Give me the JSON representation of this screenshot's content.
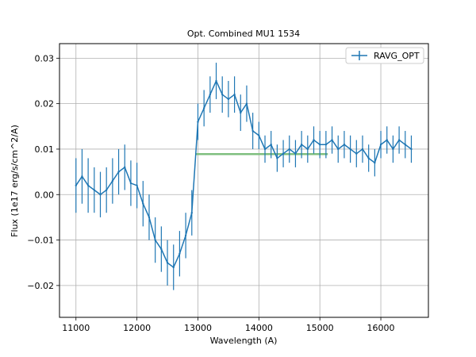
{
  "chart_data": {
    "type": "line",
    "title": "Opt. Combined MU1 1534",
    "xlabel": "Wavelength (A)",
    "ylabel": "Flux (1e17 erg/s/cm^2/A)",
    "xlim": [
      10730,
      16780
    ],
    "ylim": [
      -0.027,
      0.0332
    ],
    "grid": true,
    "legend": {
      "position": "top-right",
      "entries": [
        "RAVG_OPT"
      ]
    },
    "xticks": [
      11000,
      12000,
      13000,
      14000,
      15000,
      16000
    ],
    "xtick_labels": [
      "11000",
      "12000",
      "13000",
      "14000",
      "15000",
      "16000"
    ],
    "yticks": [
      -0.02,
      -0.01,
      0.0,
      0.01,
      0.02,
      0.03
    ],
    "ytick_labels": [
      "−0.02",
      "−0.01",
      "0.00",
      "0.01",
      "0.02",
      "0.03"
    ],
    "series": [
      {
        "name": "RAVG_OPT",
        "color": "#1f77b4",
        "x": [
          11000,
          11100,
          11200,
          11300,
          11400,
          11500,
          11600,
          11700,
          11800,
          11900,
          12000,
          12100,
          12200,
          12300,
          12400,
          12500,
          12600,
          12700,
          12800,
          12900,
          13000,
          13100,
          13200,
          13300,
          13400,
          13500,
          13600,
          13700,
          13800,
          13900,
          14000,
          14100,
          14200,
          14300,
          14400,
          14500,
          14600,
          14700,
          14800,
          14900,
          15000,
          15100,
          15200,
          15300,
          15400,
          15500,
          15600,
          15700,
          15800,
          15900,
          16000,
          16100,
          16200,
          16300,
          16400,
          16500
        ],
        "y": [
          0.002,
          0.004,
          0.002,
          0.001,
          0.0,
          0.001,
          0.003,
          0.005,
          0.006,
          0.0025,
          0.002,
          -0.002,
          -0.005,
          -0.01,
          -0.012,
          -0.015,
          -0.016,
          -0.013,
          -0.009,
          -0.004,
          0.016,
          0.019,
          0.022,
          0.025,
          0.022,
          0.021,
          0.022,
          0.018,
          0.02,
          0.014,
          0.013,
          0.01,
          0.011,
          0.008,
          0.009,
          0.01,
          0.009,
          0.011,
          0.01,
          0.012,
          0.011,
          0.011,
          0.012,
          0.01,
          0.011,
          0.01,
          0.009,
          0.01,
          0.008,
          0.007,
          0.011,
          0.012,
          0.01,
          0.012,
          0.011,
          0.01
        ],
        "yerr": [
          0.006,
          0.006,
          0.006,
          0.005,
          0.005,
          0.005,
          0.005,
          0.005,
          0.005,
          0.005,
          0.005,
          0.005,
          0.005,
          0.005,
          0.005,
          0.005,
          0.005,
          0.005,
          0.005,
          0.005,
          0.004,
          0.004,
          0.004,
          0.004,
          0.004,
          0.004,
          0.004,
          0.004,
          0.004,
          0.004,
          0.003,
          0.003,
          0.003,
          0.003,
          0.003,
          0.003,
          0.003,
          0.003,
          0.003,
          0.003,
          0.003,
          0.003,
          0.003,
          0.003,
          0.003,
          0.003,
          0.003,
          0.003,
          0.003,
          0.003,
          0.003,
          0.003,
          0.003,
          0.003,
          0.003,
          0.003
        ]
      },
      {
        "color": "#7fbf7f",
        "x": [
          12960,
          15130
        ],
        "y": [
          0.0089,
          0.0089
        ]
      }
    ]
  }
}
